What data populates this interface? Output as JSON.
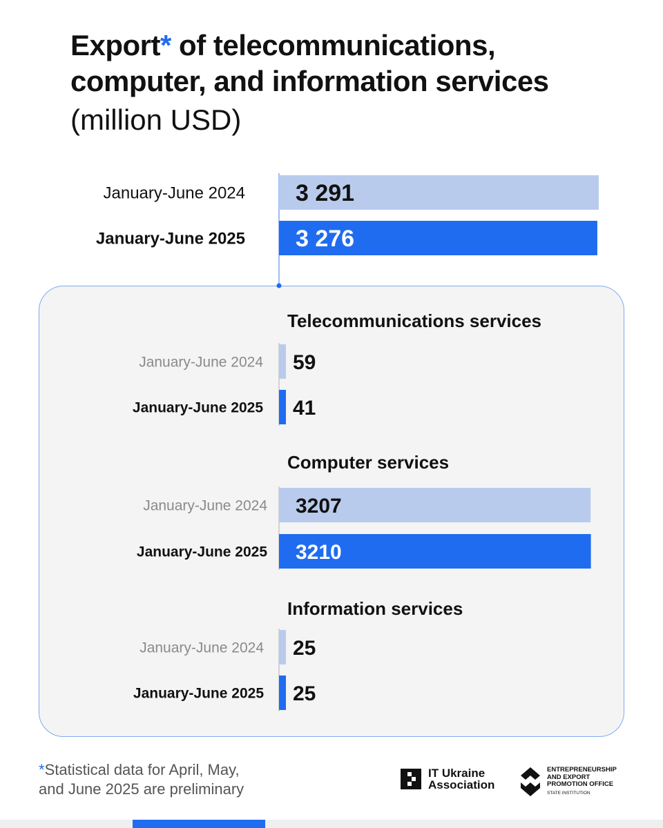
{
  "title": {
    "word": "Export",
    "star": "*",
    "rest": " of telecommunications,",
    "line2": "computer, and information services",
    "unit": "(million USD)"
  },
  "colors": {
    "accent": "#1f6cf0",
    "light": "#b9cbed",
    "panel_bg": "#f4f4f5",
    "panel_border": "#7fa9f2"
  },
  "chart_data": [
    {
      "type": "bar",
      "orientation": "horizontal",
      "title": "",
      "categories": [
        "January-June 2024",
        "January-June 2025"
      ],
      "values": [
        3291,
        3276
      ],
      "value_labels": [
        "3 291",
        "3 276"
      ]
    },
    {
      "type": "bar",
      "orientation": "horizontal",
      "title": "Telecommunications services",
      "categories": [
        "January-June 2024",
        "January-June 2025"
      ],
      "values": [
        59,
        41
      ],
      "value_labels": [
        "59",
        "41"
      ]
    },
    {
      "type": "bar",
      "orientation": "horizontal",
      "title": "Computer services",
      "categories": [
        "January-June 2024",
        "January-June 2025"
      ],
      "values": [
        3207,
        3210
      ],
      "value_labels": [
        "3207",
        "3210"
      ]
    },
    {
      "type": "bar",
      "orientation": "horizontal",
      "title": "Information services",
      "categories": [
        "January-June 2024",
        "January-June 2025"
      ],
      "values": [
        25,
        25
      ],
      "value_labels": [
        "25",
        "25"
      ]
    }
  ],
  "footnote": {
    "star": "*",
    "line1": "Statistical data for April, May,",
    "line2": "and June 2025 are preliminary"
  },
  "logos": {
    "it_ukraine": {
      "line1": "IT Ukraine",
      "line2": "Association"
    },
    "epo": {
      "line1": "ENTREPRENEURSHIP",
      "line2": "AND EXPORT",
      "line3": "PROMOTION OFFICE",
      "line4": "STATE INSTITUTION"
    }
  }
}
